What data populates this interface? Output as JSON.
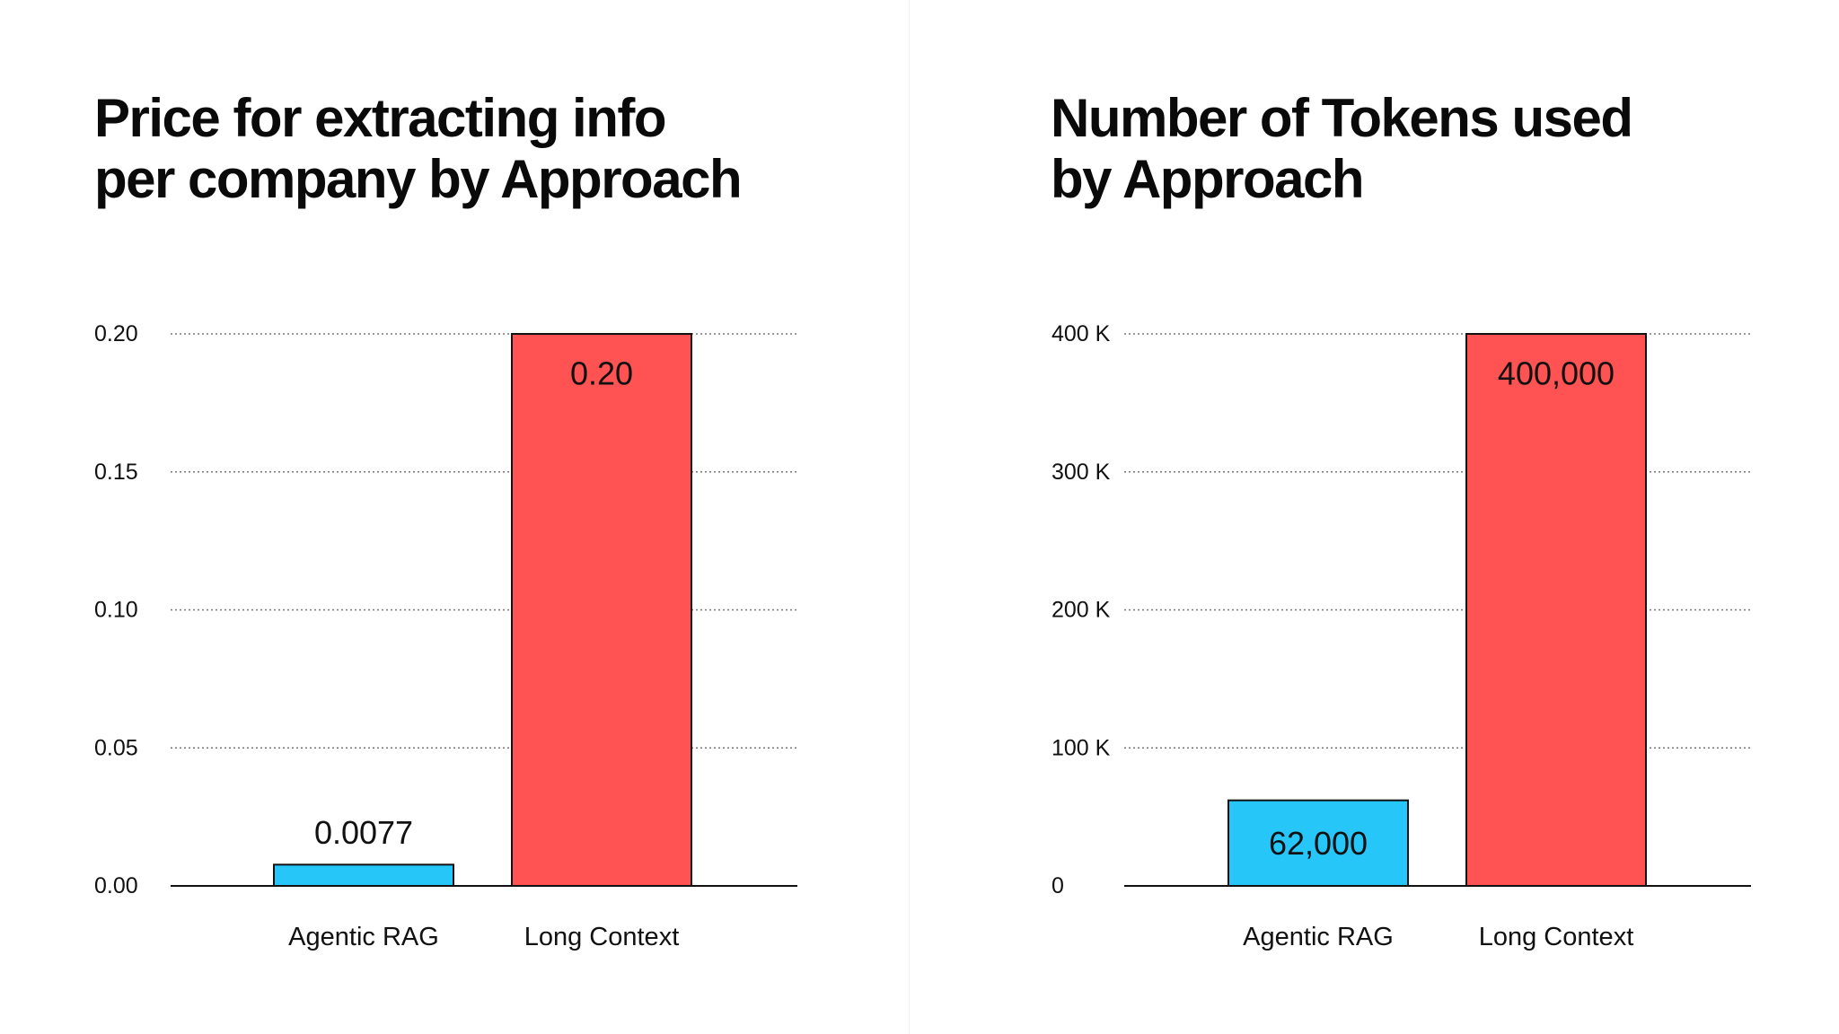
{
  "chart_data": [
    {
      "type": "bar",
      "title": "Price for extracting info\nper company by Approach",
      "categories": [
        "Agentic RAG",
        "Long Context"
      ],
      "values": [
        0.0077,
        0.2
      ],
      "data_labels": [
        "0.0077",
        "0.20"
      ],
      "colors": [
        "#26c6f9",
        "#ff5252"
      ],
      "ylim": [
        0,
        0.2
      ],
      "yticks": [
        0,
        0.05,
        0.1,
        0.15,
        0.2
      ],
      "ytick_labels": [
        "0.00",
        "0.05",
        "0.10",
        "0.15",
        "0.20"
      ],
      "grid": true,
      "xlabel": "",
      "ylabel": ""
    },
    {
      "type": "bar",
      "title": "Number of Tokens used\nby Approach",
      "categories": [
        "Agentic RAG",
        "Long Context"
      ],
      "values": [
        62000,
        400000
      ],
      "data_labels": [
        "62,000",
        "400,000"
      ],
      "colors": [
        "#26c6f9",
        "#ff5252"
      ],
      "ylim": [
        0,
        400000
      ],
      "yticks": [
        0,
        100000,
        200000,
        300000,
        400000
      ],
      "ytick_labels": [
        "0",
        "100 K",
        "200 K",
        "300 K",
        "400 K"
      ],
      "grid": true,
      "xlabel": "",
      "ylabel": ""
    }
  ]
}
